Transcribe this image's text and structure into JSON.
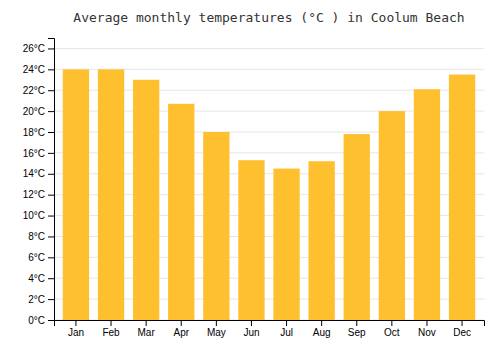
{
  "chart_data": {
    "type": "bar",
    "title": "Average monthly temperatures (°C ) in Coolum Beach",
    "categories": [
      "Jan",
      "Feb",
      "Mar",
      "Apr",
      "May",
      "Jun",
      "Jul",
      "Aug",
      "Sep",
      "Oct",
      "Nov",
      "Dec"
    ],
    "values": [
      24.0,
      24.0,
      23.0,
      20.7,
      18.0,
      15.3,
      14.5,
      15.2,
      17.8,
      20.0,
      22.1,
      23.5
    ],
    "color": "#FFC030",
    "ylim": [
      0,
      27
    ],
    "yticks": [
      {
        "value": 0,
        "label": "0°C"
      },
      {
        "value": 2,
        "label": "2°C"
      },
      {
        "value": 4,
        "label": "4°C"
      },
      {
        "value": 6,
        "label": "6°C"
      },
      {
        "value": 8,
        "label": "8°C"
      },
      {
        "value": 10,
        "label": "10°C"
      },
      {
        "value": 12,
        "label": "12°C"
      },
      {
        "value": 14,
        "label": "14°C"
      },
      {
        "value": 16,
        "label": "16°C"
      },
      {
        "value": 18,
        "label": "18°C"
      },
      {
        "value": 20,
        "label": "20°C"
      },
      {
        "value": 22,
        "label": "22°C"
      },
      {
        "value": 24,
        "label": "24°C"
      },
      {
        "value": 26,
        "label": "26°C"
      }
    ],
    "grid": true
  }
}
